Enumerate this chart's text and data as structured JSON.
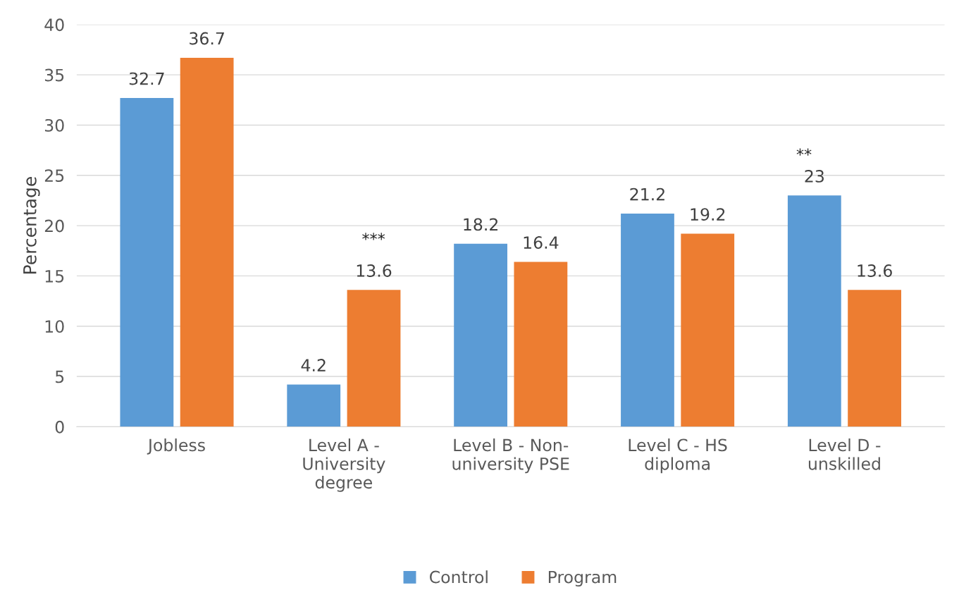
{
  "chart_data": {
    "type": "bar",
    "ylabel": "Percentage",
    "categories": [
      "Jobless",
      "Level A -\nUniversity\ndegree",
      "Level B - Non-\nuniversity PSE",
      "Level C - HS\ndiploma",
      "Level D -\nunskilled"
    ],
    "series": [
      {
        "name": "Control",
        "color": "#5b9bd5",
        "values": [
          32.7,
          4.2,
          18.2,
          21.2,
          23
        ]
      },
      {
        "name": "Program",
        "color": "#ed7d31",
        "values": [
          36.7,
          13.6,
          16.4,
          19.2,
          13.6
        ]
      }
    ],
    "ylim": [
      0,
      40
    ],
    "yticks": [
      0,
      5,
      10,
      15,
      20,
      25,
      30,
      35,
      40
    ],
    "grid": "y",
    "legend": "bottom",
    "data_labels": true,
    "annotations": [
      "***",
      "**"
    ]
  }
}
